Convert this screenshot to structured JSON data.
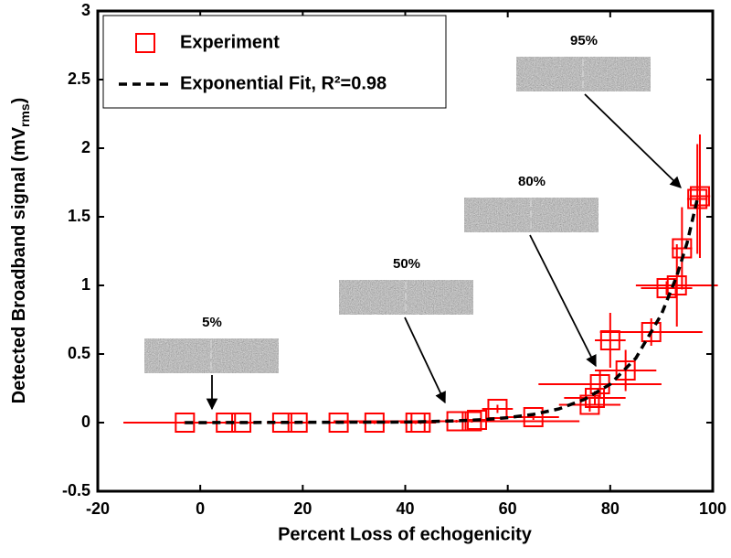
{
  "chart_data": {
    "type": "scatter",
    "xlabel": "Percent Loss of echogenicity",
    "ylabel": {
      "text": "Detected Broadband signal (mV",
      "sub": "rms",
      "tail": ")"
    },
    "xlim": [
      -20,
      100
    ],
    "xticks": [
      -20,
      0,
      20,
      40,
      60,
      80,
      100
    ],
    "ylim": [
      -0.5,
      3
    ],
    "yticks": [
      -0.5,
      0,
      0.5,
      1,
      1.5,
      2,
      2.5,
      3
    ],
    "legend": "upper left",
    "series": [
      {
        "name": "Experiment",
        "color": "#ff0000",
        "x": [
          -3,
          5,
          8,
          16,
          19,
          27,
          34,
          42,
          43,
          50,
          53,
          54,
          58,
          65,
          76,
          77,
          78,
          80,
          83,
          88,
          91,
          93,
          94,
          97,
          97.5
        ],
        "y": [
          0,
          0,
          0,
          0,
          0,
          0,
          0,
          0,
          0,
          0.01,
          0.01,
          0.02,
          0.1,
          0.04,
          0.13,
          0.18,
          0.28,
          0.6,
          0.38,
          0.66,
          0.98,
          1.0,
          1.27,
          1.63,
          1.65
        ],
        "xerr": [
          12,
          3,
          3,
          3,
          3,
          2,
          3,
          3,
          3,
          24,
          3,
          3,
          3,
          5,
          6,
          6,
          12,
          3,
          6,
          10,
          5,
          8,
          2,
          2,
          2
        ],
        "yerr": [
          0.01,
          0.01,
          0.01,
          0.01,
          0.01,
          0.01,
          0.01,
          0.01,
          0.01,
          0.01,
          0.01,
          0.01,
          0.03,
          0.02,
          0.05,
          0.05,
          0.1,
          0.2,
          0.15,
          0.1,
          0.05,
          0.3,
          0.3,
          0.4,
          0.45
        ]
      },
      {
        "name": "Exponential Fit, R²=0.98",
        "color": "#000000",
        "dashed": true,
        "x": [
          -3,
          40,
          50,
          55,
          60,
          65,
          70,
          75,
          80,
          85,
          90,
          93,
          95,
          97
        ],
        "y": [
          0,
          0.004,
          0.013,
          0.021,
          0.036,
          0.06,
          0.1,
          0.17,
          0.28,
          0.47,
          0.79,
          1.07,
          1.31,
          1.63
        ]
      }
    ],
    "annotations": [
      "5%",
      "50%",
      "80%",
      "95%"
    ]
  }
}
